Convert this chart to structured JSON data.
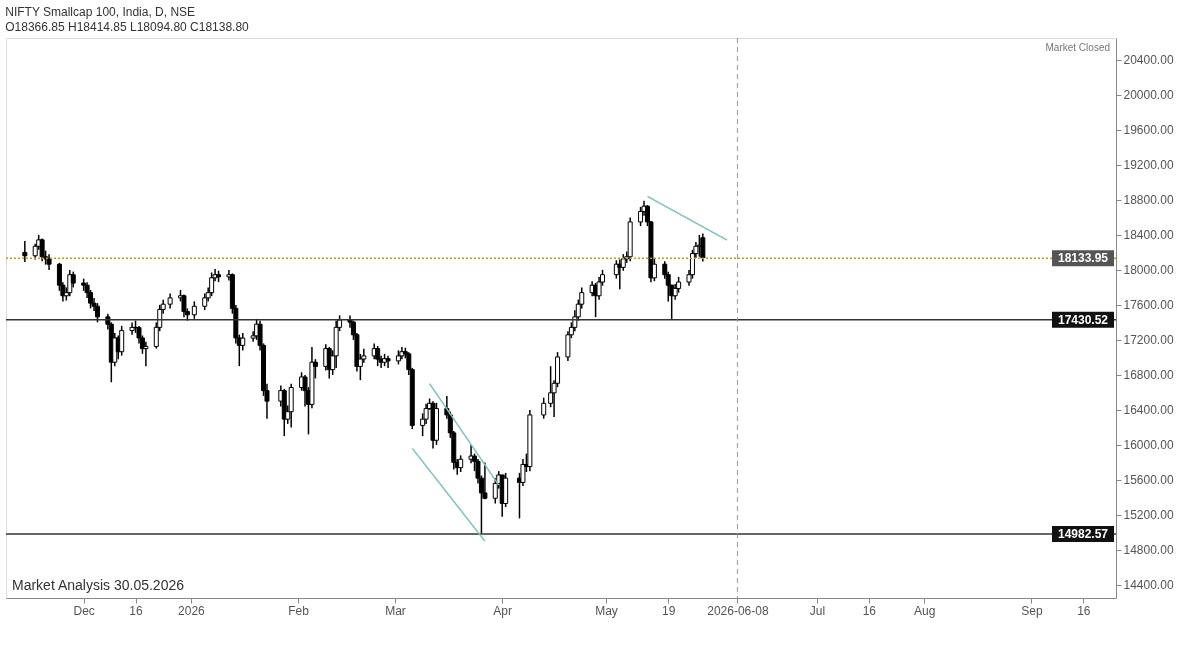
{
  "chart_data": {
    "type": "candlestick",
    "title": "NIFTY Smallcap 100, India, D, NSE",
    "subtitle": "O18366.85  H18414.85  L18094.80  C18138.80",
    "color": "#000000",
    "x": [
      "2025-11-14",
      "2025-11-17",
      "2025-11-18",
      "2025-11-19",
      "2025-11-20",
      "2025-11-21",
      "2025-11-24",
      "2025-11-25",
      "2025-11-26",
      "2025-11-27",
      "2025-11-28",
      "2025-12-01",
      "2025-12-02",
      "2025-12-03",
      "2025-12-04",
      "2025-12-05",
      "2025-12-08",
      "2025-12-09",
      "2025-12-10",
      "2025-12-11",
      "2025-12-12",
      "2025-12-15",
      "2025-12-16",
      "2025-12-17",
      "2025-12-18",
      "2025-12-19",
      "2025-12-22",
      "2025-12-23",
      "2025-12-24",
      "2025-12-26",
      "2025-12-29",
      "2025-12-30",
      "2025-12-31",
      "2026-01-02",
      "2026-01-05",
      "2026-01-06",
      "2026-01-07",
      "2026-01-08",
      "2026-01-09",
      "2026-01-12",
      "2026-01-13",
      "2026-01-14",
      "2026-01-15",
      "2026-01-16",
      "2026-01-19",
      "2026-01-20",
      "2026-01-21",
      "2026-01-22",
      "2026-01-23",
      "2026-01-27",
      "2026-01-28",
      "2026-01-29",
      "2026-01-30",
      "2026-02-02",
      "2026-02-03",
      "2026-02-04",
      "2026-02-05",
      "2026-02-06",
      "2026-02-09",
      "2026-02-10",
      "2026-02-11",
      "2026-02-12",
      "2026-02-13",
      "2026-02-16",
      "2026-02-17",
      "2026-02-18",
      "2026-02-19",
      "2026-02-20",
      "2026-02-23",
      "2026-02-24",
      "2026-02-25",
      "2026-02-26",
      "2026-02-27",
      "2026-03-02",
      "2026-03-03",
      "2026-03-04",
      "2026-03-05",
      "2026-03-06",
      "2026-03-09",
      "2026-03-10",
      "2026-03-11",
      "2026-03-12",
      "2026-03-13",
      "2026-03-16",
      "2026-03-17",
      "2026-03-18",
      "2026-03-19",
      "2026-03-20",
      "2026-03-23",
      "2026-03-24",
      "2026-03-25",
      "2026-03-26",
      "2026-03-27",
      "2026-03-30",
      "2026-03-31",
      "2026-04-01",
      "2026-04-02",
      "2026-04-06",
      "2026-04-07",
      "2026-04-08",
      "2026-04-09",
      "2026-04-13",
      "2026-04-15",
      "2026-04-16",
      "2026-04-17",
      "2026-04-20",
      "2026-04-21",
      "2026-04-22",
      "2026-04-23",
      "2026-04-24",
      "2026-04-27",
      "2026-04-28",
      "2026-04-29",
      "2026-04-30",
      "2026-05-04",
      "2026-05-05",
      "2026-05-06",
      "2026-05-07",
      "2026-05-08",
      "2026-05-11",
      "2026-05-12",
      "2026-05-13",
      "2026-05-14",
      "2026-05-15",
      "2026-05-18",
      "2026-05-19",
      "2026-05-20",
      "2026-05-21",
      "2026-05-22",
      "2026-05-25",
      "2026-05-26",
      "2026-05-27",
      "2026-05-28",
      "2026-05-29"
    ],
    "ohlc": [
      [
        18200,
        18330,
        18090,
        18161
      ],
      [
        18161,
        18300,
        18120,
        18270
      ],
      [
        18270,
        18400,
        18230,
        18343
      ],
      [
        18343,
        18360,
        18100,
        18150
      ],
      [
        18150,
        18220,
        18060,
        18126
      ],
      [
        18126,
        18180,
        18000,
        18065
      ],
      [
        18065,
        18080,
        17760,
        17825
      ],
      [
        17825,
        17860,
        17640,
        17704
      ],
      [
        17704,
        17800,
        17650,
        17740
      ],
      [
        17740,
        18000,
        17700,
        17945
      ],
      [
        17945,
        17980,
        17800,
        17849
      ],
      [
        17849,
        17900,
        17760,
        17825
      ],
      [
        17825,
        17860,
        17680,
        17740
      ],
      [
        17740,
        17770,
        17560,
        17620
      ],
      [
        17620,
        17680,
        17530,
        17584
      ],
      [
        17584,
        17620,
        17400,
        17463
      ],
      [
        17463,
        17500,
        17320,
        17379
      ],
      [
        17379,
        17400,
        16716,
        16945
      ],
      [
        16945,
        17280,
        16900,
        17222
      ],
      [
        17222,
        17250,
        16980,
        17065
      ],
      [
        17065,
        17360,
        17020,
        17306
      ],
      [
        17306,
        17400,
        17260,
        17343
      ],
      [
        17343,
        17420,
        17280,
        17340
      ],
      [
        17340,
        17360,
        17160,
        17222
      ],
      [
        17222,
        17250,
        17040,
        17100
      ],
      [
        17100,
        17180,
        16900,
        17125
      ],
      [
        17125,
        17400,
        17100,
        17343
      ],
      [
        17343,
        17600,
        17300,
        17548
      ],
      [
        17548,
        17660,
        17500,
        17608
      ],
      [
        17608,
        17730,
        17560,
        17680
      ],
      [
        17680,
        17770,
        17640,
        17704
      ],
      [
        17704,
        17720,
        17460,
        17524
      ],
      [
        17524,
        17560,
        17420,
        17487
      ],
      [
        17487,
        17640,
        17440,
        17584
      ],
      [
        17584,
        17730,
        17540,
        17680
      ],
      [
        17680,
        17800,
        17640,
        17740
      ],
      [
        17740,
        17970,
        17700,
        17909
      ],
      [
        17909,
        18010,
        17870,
        17945
      ],
      [
        17945,
        17990,
        17860,
        17920
      ],
      [
        17920,
        18000,
        17880,
        17945
      ],
      [
        17945,
        17960,
        17500,
        17560
      ],
      [
        17560,
        17600,
        17160,
        17222
      ],
      [
        17222,
        17260,
        16900,
        17137
      ],
      [
        17137,
        17280,
        17080,
        17220
      ],
      [
        17220,
        17300,
        17180,
        17246
      ],
      [
        17246,
        17440,
        17200,
        17379
      ],
      [
        17379,
        17420,
        17080,
        17137
      ],
      [
        17137,
        17160,
        16560,
        16620
      ],
      [
        16620,
        16700,
        16300,
        16500
      ],
      [
        16500,
        16680,
        16440,
        16620
      ],
      [
        16620,
        16640,
        16100,
        16294
      ],
      [
        16294,
        16450,
        16240,
        16379
      ],
      [
        16379,
        16700,
        16200,
        16656
      ],
      [
        16656,
        16830,
        16620,
        16776
      ],
      [
        16776,
        16800,
        16440,
        16620
      ],
      [
        16620,
        16660,
        16120,
        16463
      ],
      [
        16463,
        17120,
        16420,
        16945
      ],
      [
        16945,
        16980,
        16760,
        16897
      ],
      [
        16897,
        17150,
        16850,
        17100
      ],
      [
        17100,
        17120,
        16760,
        16860
      ],
      [
        16860,
        17080,
        16800,
        17017
      ],
      [
        17017,
        17420,
        16880,
        17343
      ],
      [
        17343,
        17480,
        17300,
        17427
      ],
      [
        17427,
        17480,
        17340,
        17403
      ],
      [
        17403,
        17420,
        17200,
        17258
      ],
      [
        17258,
        17280,
        16840,
        16897
      ],
      [
        16897,
        17040,
        16740,
        16981
      ],
      [
        16981,
        17100,
        16940,
        17017
      ],
      [
        17017,
        17160,
        16980,
        17100
      ],
      [
        17100,
        17130,
        16900,
        16980
      ],
      [
        16980,
        17020,
        16880,
        16945
      ],
      [
        16945,
        17040,
        16900,
        16985
      ],
      [
        16985,
        17020,
        16880,
        16960
      ],
      [
        16960,
        17080,
        16920,
        17017
      ],
      [
        17017,
        17120,
        16980,
        17065
      ],
      [
        17065,
        17110,
        16990,
        17040
      ],
      [
        17040,
        17060,
        16800,
        16860
      ],
      [
        16860,
        16880,
        16180,
        16222
      ],
      [
        16222,
        16360,
        16100,
        16294
      ],
      [
        16294,
        16470,
        16240,
        16415
      ],
      [
        16415,
        16530,
        16400,
        16475
      ],
      [
        16475,
        16500,
        15960,
        16053
      ],
      [
        16053,
        16480,
        16000,
        16415
      ],
      [
        16415,
        16560,
        16300,
        16342
      ],
      [
        16342,
        16380,
        16080,
        16137
      ],
      [
        16137,
        16160,
        15720,
        15800
      ],
      [
        15800,
        15840,
        15660,
        15740
      ],
      [
        15740,
        15880,
        15690,
        15836
      ],
      [
        15836,
        16000,
        15790,
        15872
      ],
      [
        15872,
        15900,
        15700,
        15812
      ],
      [
        15812,
        15840,
        15560,
        15620
      ],
      [
        15620,
        15650,
        14990,
        15451
      ],
      [
        15451,
        15800,
        15380,
        15390
      ],
      [
        15390,
        15620,
        15330,
        15559
      ],
      [
        15559,
        15700,
        15500,
        15656
      ],
      [
        15656,
        15660,
        15180,
        15330
      ],
      [
        15330,
        15680,
        15290,
        15620
      ],
      [
        15620,
        15680,
        15160,
        15571
      ],
      [
        15571,
        15840,
        15530,
        15776
      ],
      [
        15776,
        15900,
        15690,
        15752
      ],
      [
        15752,
        16400,
        15700,
        16342
      ],
      [
        16342,
        16540,
        16300,
        16475
      ],
      [
        16475,
        16900,
        16430,
        16595
      ],
      [
        16595,
        16740,
        16320,
        16704
      ],
      [
        16704,
        17060,
        16660,
        17005
      ],
      [
        17005,
        17300,
        16960,
        17258
      ],
      [
        17258,
        17400,
        17220,
        17343
      ],
      [
        17343,
        17540,
        17300,
        17463
      ],
      [
        17463,
        17660,
        17420,
        17608
      ],
      [
        17608,
        17800,
        17560,
        17740
      ],
      [
        17740,
        17870,
        17700,
        17825
      ],
      [
        17825,
        17850,
        17460,
        17704
      ],
      [
        17704,
        17920,
        17660,
        17861
      ],
      [
        17861,
        18000,
        17820,
        17945
      ],
      [
        17945,
        18110,
        17900,
        18065
      ],
      [
        18065,
        18120,
        17780,
        18029
      ],
      [
        18029,
        18180,
        17990,
        18126
      ],
      [
        18126,
        18210,
        18080,
        18150
      ],
      [
        18150,
        18600,
        18100,
        18548
      ],
      [
        18548,
        18720,
        18500,
        18668
      ],
      [
        18668,
        18789,
        18620,
        18728
      ],
      [
        18728,
        18740,
        18500,
        18548
      ],
      [
        18548,
        18560,
        17860,
        17909
      ],
      [
        17909,
        18130,
        17870,
        18065
      ],
      [
        18065,
        18100,
        17900,
        17945
      ],
      [
        17945,
        17980,
        17640,
        17825
      ],
      [
        17825,
        17830,
        17440,
        17704
      ],
      [
        17704,
        17840,
        17660,
        17788
      ],
      [
        17788,
        17920,
        17740,
        17861
      ],
      [
        17861,
        18000,
        17820,
        17945
      ],
      [
        17945,
        18230,
        17900,
        18186
      ],
      [
        18186,
        18320,
        18140,
        18270
      ],
      [
        18270,
        18400,
        18150,
        18282
      ],
      [
        18366.85,
        18414.85,
        18094.8,
        18138.8
      ]
    ],
    "series": [
      {
        "type": "line",
        "color": "#7fbfbf",
        "x": [
          "2026-03-11",
          "2026-03-31"
        ],
        "values": [
          16700,
          15540
        ]
      },
      {
        "type": "line",
        "color": "#7fbfbf",
        "x": [
          "2026-03-06",
          "2026-03-27"
        ],
        "values": [
          15960,
          14900
        ]
      },
      {
        "type": "line",
        "color": "#7fbfbf",
        "x": [
          "2026-05-13",
          "2026-06-05"
        ],
        "values": [
          18840,
          18340
        ]
      }
    ],
    "xlim": [
      "2025-11-10",
      "2026-09-24"
    ],
    "xticks": [
      {
        "value": "2025-12-01",
        "label": "Dec"
      },
      {
        "value": "2025-12-16",
        "label": "16"
      },
      {
        "value": "2026-01-01",
        "label": "2026"
      },
      {
        "value": "2026-02-01",
        "label": "Feb"
      },
      {
        "value": "2026-03-01",
        "label": "Mar"
      },
      {
        "value": "2026-04-01",
        "label": "Apr"
      },
      {
        "value": "2026-05-01",
        "label": "May"
      },
      {
        "value": "2026-05-19",
        "label": "19"
      },
      {
        "value": "2026-06-08",
        "label": "2026-06-08"
      },
      {
        "value": "2026-07-01",
        "label": "Jul"
      },
      {
        "value": "2026-07-16",
        "label": "16"
      },
      {
        "value": "2026-08-01",
        "label": "Aug"
      },
      {
        "value": "2026-09-01",
        "label": "Sep"
      },
      {
        "value": "2026-09-16",
        "label": "16"
      }
    ],
    "ylim": [
      14250,
      20650
    ],
    "yticks": [
      {
        "value": 14400,
        "label": "14400.00"
      },
      {
        "value": 14800,
        "label": "14800.00"
      },
      {
        "value": 15200,
        "label": "15200.00"
      },
      {
        "value": 15600,
        "label": "15600.00"
      },
      {
        "value": 16000,
        "label": "16000.00"
      },
      {
        "value": 16400,
        "label": "16400.00"
      },
      {
        "value": 16800,
        "label": "16800.00"
      },
      {
        "value": 17200,
        "label": "17200.00"
      },
      {
        "value": 17600,
        "label": "17600.00"
      },
      {
        "value": 18000,
        "label": "18000.00"
      },
      {
        "value": 18400,
        "label": "18400.00"
      },
      {
        "value": 18800,
        "label": "18800.00"
      },
      {
        "value": 19200,
        "label": "19200.00"
      },
      {
        "value": 19600,
        "label": "19600.00"
      },
      {
        "value": 20000,
        "label": "20000.00"
      },
      {
        "value": 20400,
        "label": "20400.00"
      }
    ],
    "ref_lines": [
      {
        "axis": "y",
        "value": 18133.95,
        "label": "18133.95",
        "color": "#c8a000",
        "line_style": "dotted"
      },
      {
        "axis": "y",
        "value": 17430.52,
        "label": "17430.52",
        "color": "#333333",
        "line_style": "solid"
      },
      {
        "axis": "y",
        "value": 14982.57,
        "label": "14982.57",
        "color": "#333333",
        "line_style": "solid"
      },
      {
        "axis": "x",
        "value": "2026-06-08",
        "color": "#999999",
        "line_style": "dashed"
      }
    ],
    "annotations": [
      "Market Closed",
      "Market Analysis 30.05.2026"
    ]
  }
}
